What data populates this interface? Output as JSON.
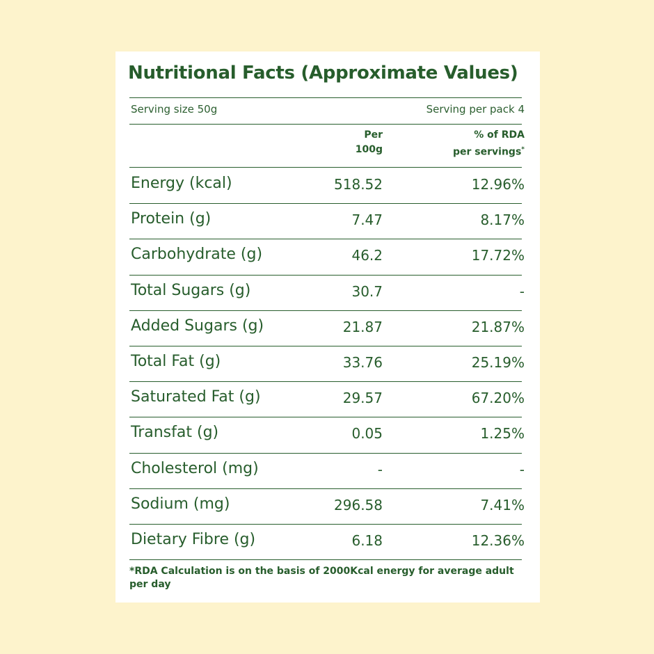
{
  "title": "Nutritional Facts (Approximate Values)",
  "serving": {
    "size": "Serving size 50g",
    "per_pack": "Serving per pack 4"
  },
  "columns": {
    "per_line1": "Per",
    "per_line2": "100g",
    "rda_line1": "% of RDA",
    "rda_line2": "per servings",
    "rda_marker": "*"
  },
  "rows": [
    {
      "name": "Energy (kcal)",
      "per100g": "518.52",
      "rda": "12.96%"
    },
    {
      "name": "Protein (g)",
      "per100g": "7.47",
      "rda": "8.17%"
    },
    {
      "name": "Carbohydrate (g)",
      "per100g": "46.2",
      "rda": "17.72%"
    },
    {
      "name": "Total Sugars (g)",
      "per100g": "30.7",
      "rda": "-"
    },
    {
      "name": "Added Sugars (g)",
      "per100g": "21.87",
      "rda": "21.87%"
    },
    {
      "name": "Total Fat (g)",
      "per100g": "33.76",
      "rda": "25.19%"
    },
    {
      "name": "Saturated Fat (g)",
      "per100g": "29.57",
      "rda": "67.20%"
    },
    {
      "name": "Transfat (g)",
      "per100g": "0.05",
      "rda": "1.25%"
    },
    {
      "name": "Cholesterol (mg)",
      "per100g": "-",
      "rda": "-"
    },
    {
      "name": "Sodium (mg)",
      "per100g": "296.58",
      "rda": "7.41%"
    },
    {
      "name": "Dietary Fibre (g)",
      "per100g": "6.18",
      "rda": "12.36%"
    }
  ],
  "footnote": "*RDA Calculation is on the basis of 2000Kcal energy for average adult per day",
  "colors": {
    "background": "#fdf3cc",
    "card": "#ffffff",
    "text": "#275d2c"
  }
}
